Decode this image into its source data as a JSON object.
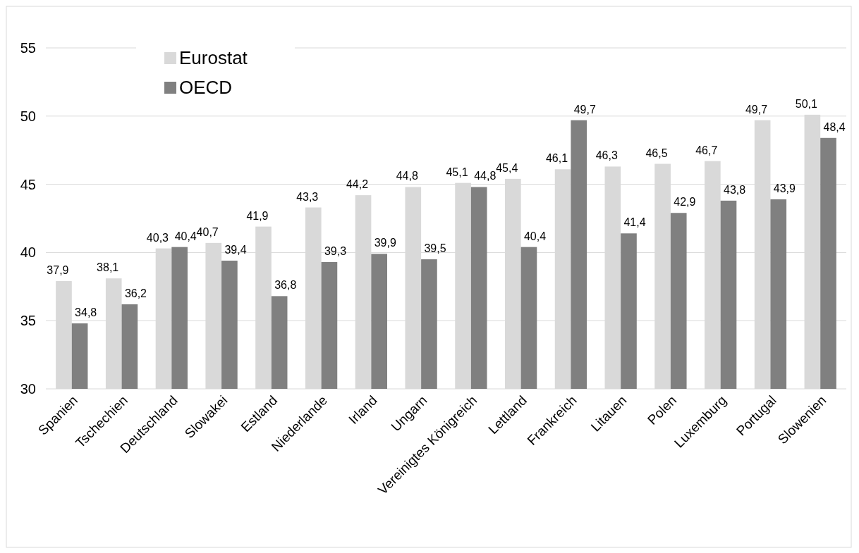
{
  "chart_data": {
    "type": "bar",
    "categories": [
      "Spanien",
      "Tschechien",
      "Deutschland",
      "Slowakei",
      "Estland",
      "Niederlande",
      "Irland",
      "Ungarn",
      "Vereinigtes Königreich",
      "Lettland",
      "Frankreich",
      "Litauen",
      "Polen",
      "Luxemburg",
      "Portugal",
      "Slowenien"
    ],
    "series": [
      {
        "name": "Eurostat",
        "color": "#d9d9d9",
        "values": [
          37.9,
          38.1,
          40.3,
          40.7,
          41.9,
          43.3,
          44.2,
          44.8,
          45.1,
          45.4,
          46.1,
          46.3,
          46.5,
          46.7,
          49.7,
          50.1
        ],
        "value_labels": [
          "37,9",
          "38,1",
          "40,3",
          "40,7",
          "41,9",
          "43,3",
          "44,2",
          "44,8",
          "45,1",
          "45,4",
          "46,1",
          "46,3",
          "46,5",
          "46,7",
          "49,7",
          "50,1"
        ]
      },
      {
        "name": "OECD",
        "color": "#808080",
        "values": [
          34.8,
          36.2,
          40.4,
          39.4,
          36.8,
          39.3,
          39.9,
          39.5,
          44.8,
          40.4,
          49.7,
          41.4,
          42.9,
          43.8,
          43.9,
          48.4
        ],
        "value_labels": [
          "34,8",
          "36,2",
          "40,4",
          "39,4",
          "36,8",
          "39,3",
          "39,9",
          "39,5",
          "44,8",
          "40,4",
          "49,7",
          "41,4",
          "42,9",
          "43,8",
          "43,9",
          "48,4"
        ]
      }
    ],
    "ylim": [
      30,
      55
    ],
    "yticks": [
      30,
      35,
      40,
      45,
      50,
      55
    ],
    "grid": "y",
    "legend": "top left"
  }
}
